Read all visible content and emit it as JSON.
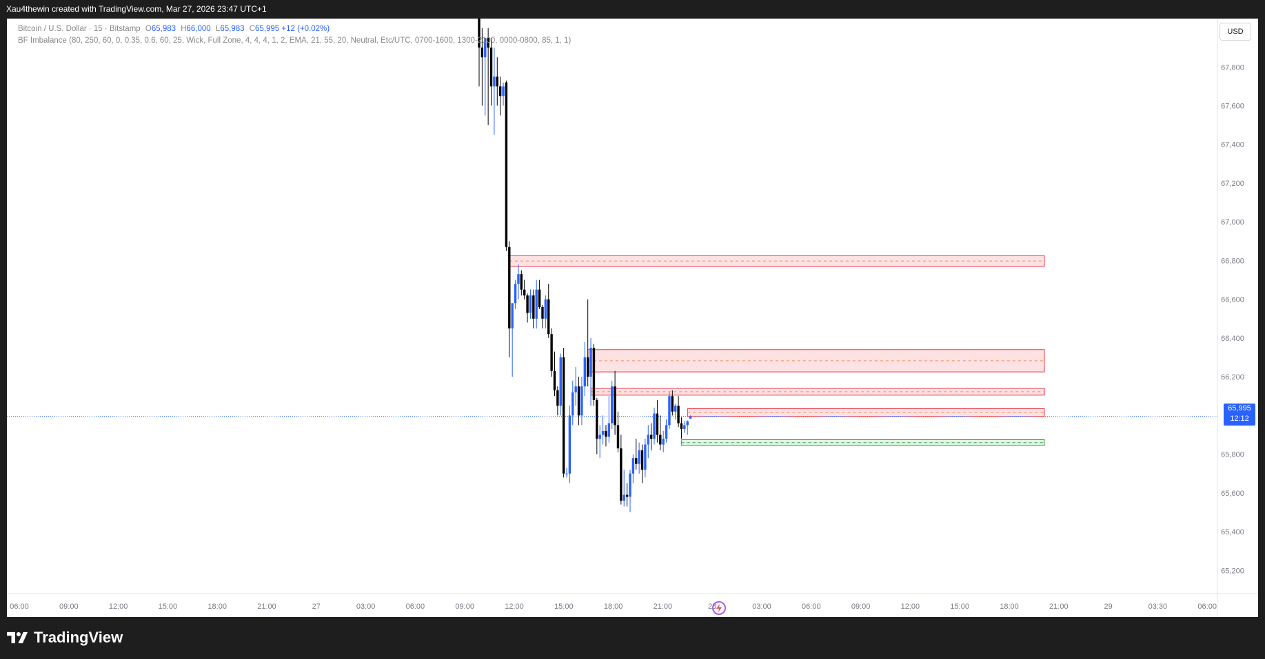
{
  "header": {
    "credit": "Xau4thewin created with TradingView.com, Mar 27, 2026 23:47 UTC+1"
  },
  "legend": {
    "symbol": "Bitcoin / U.S. Dollar · 15 · Bitstamp",
    "open_label": "O",
    "open": "65,983",
    "high_label": "H",
    "high": "66,000",
    "low_label": "L",
    "low": "65,983",
    "close_label": "C",
    "close": "65,995",
    "change": "+12 (+0.02%)",
    "indicator": "BF Imbalance (80, 250, 60, 0, 0.35, 0.6, 60, 25, Wick, Full Zone, 4, 4, 4, 1, 2, EMA, 21, 55, 20, Neutral, Etc/UTC, 0700-1600, 1300-2100, 0000-0800, 85, 1, 1)"
  },
  "toolbar": {
    "currency": "USD"
  },
  "price_tag": {
    "price": "65,995",
    "countdown": "12:12"
  },
  "colors": {
    "up": "#2962ff",
    "down": "#000000",
    "bear_zone_fill": "#fde2e4",
    "bear_zone_border": "#ef3b4a",
    "bull_zone_fill": "#dff3e1",
    "bull_zone_border": "#36a648",
    "price_line": "#2962ff",
    "frame_bg": "#ffffff",
    "page_bg": "#1e1e1e"
  },
  "brand": {
    "name": "TradingView",
    "icon": "tradingview-logo-icon",
    "watermark_icon": "lightning-icon"
  },
  "chart_data": {
    "type": "candlestick",
    "symbol": "BTCUSD",
    "interval": "15",
    "ylim": [
      65080,
      68050
    ],
    "y_ticks": [
      {
        "value": 67800,
        "label": "67,800"
      },
      {
        "value": 67600,
        "label": "67,600"
      },
      {
        "value": 67400,
        "label": "67,400"
      },
      {
        "value": 67200,
        "label": "67,200"
      },
      {
        "value": 67000,
        "label": "67,000"
      },
      {
        "value": 66800,
        "label": "66,800"
      },
      {
        "value": 66600,
        "label": "66,600"
      },
      {
        "value": 66400,
        "label": "66,400"
      },
      {
        "value": 66200,
        "label": "66,200"
      },
      {
        "value": 65800,
        "label": "65,800"
      },
      {
        "value": 65600,
        "label": "65,600"
      },
      {
        "value": 65400,
        "label": "65,400"
      },
      {
        "value": 65200,
        "label": "65,200"
      }
    ],
    "x_ticks": [
      "06:00",
      "09:00",
      "12:00",
      "15:00",
      "18:00",
      "21:00",
      "27",
      "03:00",
      "06:00",
      "09:00",
      "12:00",
      "15:00",
      "18:00",
      "21:00",
      "28",
      "03:00",
      "06:00",
      "09:00",
      "12:00",
      "15:00",
      "18:00",
      "21:00",
      "29",
      "03:30",
      "06:00"
    ],
    "last_price": 65995,
    "grid": false,
    "candles": [
      {
        "o": 68050,
        "h": 68150,
        "l": 67700,
        "c": 67900
      },
      {
        "o": 67900,
        "h": 68000,
        "l": 67600,
        "c": 67850
      },
      {
        "o": 67850,
        "h": 67950,
        "l": 67550,
        "c": 67950
      },
      {
        "o": 67950,
        "h": 68000,
        "l": 67500,
        "c": 67900
      },
      {
        "o": 67900,
        "h": 67950,
        "l": 67600,
        "c": 67700
      },
      {
        "o": 67700,
        "h": 67900,
        "l": 67450,
        "c": 67750
      },
      {
        "o": 67750,
        "h": 67850,
        "l": 67600,
        "c": 67700
      },
      {
        "o": 67700,
        "h": 67750,
        "l": 67550,
        "c": 67650
      },
      {
        "o": 67650,
        "h": 67720,
        "l": 67600,
        "c": 67700
      },
      {
        "o": 67720,
        "h": 67730,
        "l": 66850,
        "c": 66870
      },
      {
        "o": 66870,
        "h": 66900,
        "l": 66300,
        "c": 66450
      },
      {
        "o": 66450,
        "h": 66580,
        "l": 66200,
        "c": 66580
      },
      {
        "o": 66580,
        "h": 66700,
        "l": 66550,
        "c": 66680
      },
      {
        "o": 66680,
        "h": 66780,
        "l": 66600,
        "c": 66730
      },
      {
        "o": 66730,
        "h": 66750,
        "l": 66620,
        "c": 66650
      },
      {
        "o": 66650,
        "h": 66700,
        "l": 66600,
        "c": 66620
      },
      {
        "o": 66620,
        "h": 66630,
        "l": 66480,
        "c": 66530
      },
      {
        "o": 66530,
        "h": 66650,
        "l": 66500,
        "c": 66620
      },
      {
        "o": 66620,
        "h": 66650,
        "l": 66450,
        "c": 66500
      },
      {
        "o": 66500,
        "h": 66700,
        "l": 66450,
        "c": 66650
      },
      {
        "o": 66650,
        "h": 66700,
        "l": 66550,
        "c": 66560
      },
      {
        "o": 66560,
        "h": 66570,
        "l": 66450,
        "c": 66500
      },
      {
        "o": 66500,
        "h": 66620,
        "l": 66450,
        "c": 66600
      },
      {
        "o": 66600,
        "h": 66680,
        "l": 66400,
        "c": 66420
      },
      {
        "o": 66420,
        "h": 66450,
        "l": 66200,
        "c": 66230
      },
      {
        "o": 66230,
        "h": 66330,
        "l": 66100,
        "c": 66130
      },
      {
        "o": 66130,
        "h": 66150,
        "l": 66000,
        "c": 66050
      },
      {
        "o": 66050,
        "h": 66320,
        "l": 66000,
        "c": 66300
      },
      {
        "o": 66300,
        "h": 66350,
        "l": 65680,
        "c": 65700
      },
      {
        "o": 65700,
        "h": 65730,
        "l": 65680,
        "c": 65700
      },
      {
        "o": 65700,
        "h": 66050,
        "l": 65650,
        "c": 66000
      },
      {
        "o": 66000,
        "h": 66180,
        "l": 65950,
        "c": 66120
      },
      {
        "o": 66120,
        "h": 66250,
        "l": 66050,
        "c": 66150
      },
      {
        "o": 66150,
        "h": 66200,
        "l": 65950,
        "c": 66000
      },
      {
        "o": 66000,
        "h": 66200,
        "l": 65950,
        "c": 66150
      },
      {
        "o": 66150,
        "h": 66380,
        "l": 66100,
        "c": 66300
      },
      {
        "o": 66300,
        "h": 66600,
        "l": 66150,
        "c": 66200
      },
      {
        "o": 66200,
        "h": 66400,
        "l": 66050,
        "c": 66350
      },
      {
        "o": 66350,
        "h": 66370,
        "l": 66050,
        "c": 66080
      },
      {
        "o": 66080,
        "h": 66090,
        "l": 65800,
        "c": 65880
      },
      {
        "o": 65880,
        "h": 65950,
        "l": 65780,
        "c": 65900
      },
      {
        "o": 65900,
        "h": 66000,
        "l": 65850,
        "c": 65920
      },
      {
        "o": 65920,
        "h": 65950,
        "l": 65840,
        "c": 65890
      },
      {
        "o": 65890,
        "h": 66100,
        "l": 65860,
        "c": 65960
      },
      {
        "o": 65960,
        "h": 66180,
        "l": 65930,
        "c": 66150
      },
      {
        "o": 66150,
        "h": 66230,
        "l": 65900,
        "c": 65950
      },
      {
        "o": 65950,
        "h": 66020,
        "l": 65810,
        "c": 65830
      },
      {
        "o": 65830,
        "h": 65900,
        "l": 65540,
        "c": 65560
      },
      {
        "o": 65560,
        "h": 65720,
        "l": 65530,
        "c": 65590
      },
      {
        "o": 65590,
        "h": 65650,
        "l": 65530,
        "c": 65580
      },
      {
        "o": 65580,
        "h": 65720,
        "l": 65500,
        "c": 65700
      },
      {
        "o": 65700,
        "h": 65800,
        "l": 65650,
        "c": 65780
      },
      {
        "o": 65780,
        "h": 65880,
        "l": 65720,
        "c": 65750
      },
      {
        "o": 65750,
        "h": 65860,
        "l": 65700,
        "c": 65820
      },
      {
        "o": 65820,
        "h": 65850,
        "l": 65650,
        "c": 65720
      },
      {
        "o": 65720,
        "h": 65880,
        "l": 65680,
        "c": 65850
      },
      {
        "o": 65850,
        "h": 65950,
        "l": 65780,
        "c": 65900
      },
      {
        "o": 65900,
        "h": 65960,
        "l": 65820,
        "c": 65880
      },
      {
        "o": 65880,
        "h": 66040,
        "l": 65850,
        "c": 66010
      },
      {
        "o": 66010,
        "h": 66080,
        "l": 65860,
        "c": 65900
      },
      {
        "o": 65900,
        "h": 66000,
        "l": 65820,
        "c": 65850
      },
      {
        "o": 65850,
        "h": 65920,
        "l": 65810,
        "c": 65880
      },
      {
        "o": 65880,
        "h": 65980,
        "l": 65860,
        "c": 65950
      },
      {
        "o": 65950,
        "h": 66120,
        "l": 65930,
        "c": 66100
      },
      {
        "o": 66100,
        "h": 66130,
        "l": 66000,
        "c": 66020
      },
      {
        "o": 66020,
        "h": 66060,
        "l": 65980,
        "c": 66050
      },
      {
        "o": 66050,
        "h": 66100,
        "l": 65940,
        "c": 65960
      },
      {
        "o": 65960,
        "h": 65990,
        "l": 65880,
        "c": 65930
      },
      {
        "o": 65930,
        "h": 65970,
        "l": 65910,
        "c": 65950
      },
      {
        "o": 65950,
        "h": 65975,
        "l": 65900,
        "c": 65970
      },
      {
        "o": 65983,
        "h": 66000,
        "l": 65983,
        "c": 65995
      }
    ],
    "zones": [
      {
        "type": "bearish",
        "bottom": 66770,
        "top": 66825
      },
      {
        "type": "bearish",
        "bottom": 66225,
        "top": 66340
      },
      {
        "type": "bearish",
        "bottom": 66105,
        "top": 66140
      },
      {
        "type": "bearish",
        "bottom": 65995,
        "top": 66035
      },
      {
        "type": "bullish",
        "bottom": 65845,
        "top": 65875
      }
    ]
  }
}
